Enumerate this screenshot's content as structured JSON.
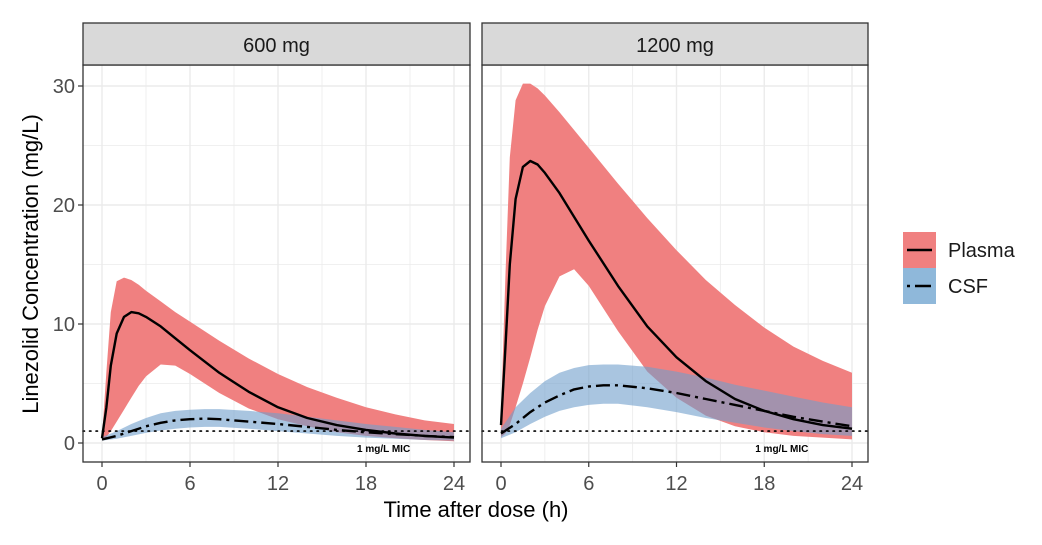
{
  "chart_data": {
    "type": "area",
    "title": "",
    "xlabel": "Time after dose (h)",
    "ylabel": "Linezolid Concentration (mg/L)",
    "xlim": [
      0,
      24
    ],
    "ylim": [
      -1.5,
      32
    ],
    "x_ticks": [
      0,
      6,
      12,
      18,
      24
    ],
    "y_ticks": [
      0,
      10,
      20,
      30
    ],
    "grid": true,
    "legend": {
      "position": "right",
      "entries": [
        {
          "name": "Plasma",
          "line": "solid",
          "fill": "#F08080"
        },
        {
          "name": "CSF",
          "line": "dashdot",
          "fill": "#8FB8DA"
        }
      ]
    },
    "reference_line": {
      "y": 1,
      "style": "dotted",
      "label": "1 mg/L MIC"
    },
    "panels": [
      {
        "label": "600 mg",
        "series": [
          {
            "name": "Plasma",
            "x": [
              0,
              0.3,
              0.6,
              1,
              1.5,
              2,
              2.5,
              3,
              4,
              5,
              6,
              8,
              10,
              12,
              14,
              16,
              18,
              20,
              22,
              24
            ],
            "median": [
              0.4,
              3.0,
              6.5,
              9.2,
              10.6,
              11.0,
              10.9,
              10.6,
              9.8,
              8.8,
              7.8,
              5.9,
              4.3,
              3.0,
              2.1,
              1.5,
              1.1,
              0.8,
              0.6,
              0.45
            ],
            "lower": [
              0.3,
              0.5,
              1.0,
              1.8,
              2.8,
              3.8,
              4.8,
              5.6,
              6.6,
              6.5,
              5.8,
              4.2,
              2.9,
              2.0,
              1.4,
              0.9,
              0.6,
              0.4,
              0.25,
              0.15
            ],
            "upper": [
              0.5,
              6.0,
              11.0,
              13.6,
              13.9,
              13.7,
              13.3,
              12.8,
              11.9,
              11.0,
              10.2,
              8.6,
              7.1,
              5.8,
              4.7,
              3.8,
              3.0,
              2.4,
              1.9,
              1.6
            ]
          },
          {
            "name": "CSF",
            "x": [
              0,
              1,
              2,
              3,
              4,
              5,
              6,
              7,
              8,
              10,
              12,
              14,
              16,
              18,
              20,
              22,
              24
            ],
            "median": [
              0.3,
              0.6,
              1.0,
              1.4,
              1.7,
              1.9,
              2.0,
              2.05,
              2.0,
              1.8,
              1.6,
              1.35,
              1.1,
              0.9,
              0.75,
              0.6,
              0.5
            ],
            "lower": [
              0.2,
              0.35,
              0.6,
              0.85,
              1.05,
              1.2,
              1.3,
              1.35,
              1.35,
              1.2,
              1.0,
              0.8,
              0.6,
              0.45,
              0.35,
              0.25,
              0.2
            ],
            "upper": [
              0.5,
              1.0,
              1.6,
              2.1,
              2.5,
              2.7,
              2.8,
              2.85,
              2.85,
              2.7,
              2.5,
              2.2,
              1.9,
              1.6,
              1.35,
              1.1,
              0.9
            ]
          }
        ]
      },
      {
        "label": "1200 mg",
        "series": [
          {
            "name": "Plasma",
            "x": [
              0,
              0.3,
              0.6,
              1,
              1.5,
              2,
              2.5,
              3,
              4,
              5,
              6,
              8,
              10,
              12,
              14,
              16,
              18,
              20,
              22,
              24
            ],
            "median": [
              1.5,
              8.0,
              15.0,
              20.5,
              23.2,
              23.7,
              23.4,
              22.7,
              21.0,
              19.0,
              17.0,
              13.2,
              9.8,
              7.2,
              5.2,
              3.7,
              2.7,
              2.0,
              1.5,
              1.2
            ],
            "lower": [
              0.5,
              0.8,
              1.5,
              3.0,
              5.0,
              7.2,
              9.5,
              11.5,
              14.0,
              14.6,
              13.2,
              9.4,
              6.0,
              3.8,
              2.3,
              1.4,
              0.9,
              0.6,
              0.45,
              0.3
            ],
            "upper": [
              2.5,
              14.0,
              24.0,
              28.8,
              30.2,
              30.2,
              29.8,
              29.2,
              27.8,
              26.3,
              24.8,
              21.8,
              18.9,
              16.2,
              13.7,
              11.6,
              9.7,
              8.1,
              6.9,
              5.9
            ]
          },
          {
            "name": "CSF",
            "x": [
              0,
              1,
              2,
              3,
              4,
              5,
              6,
              7,
              8,
              10,
              12,
              14,
              16,
              18,
              20,
              22,
              24
            ],
            "median": [
              0.8,
              1.6,
              2.6,
              3.4,
              4.0,
              4.5,
              4.75,
              4.85,
              4.85,
              4.6,
              4.2,
              3.7,
              3.2,
              2.7,
              2.2,
              1.8,
              1.4
            ],
            "lower": [
              0.4,
              0.9,
              1.6,
              2.2,
              2.7,
              3.0,
              3.2,
              3.3,
              3.3,
              3.0,
              2.6,
              2.1,
              1.7,
              1.3,
              1.0,
              0.75,
              0.6
            ],
            "upper": [
              1.2,
              3.0,
              4.2,
              5.2,
              5.9,
              6.3,
              6.55,
              6.6,
              6.6,
              6.4,
              6.0,
              5.5,
              4.9,
              4.4,
              3.9,
              3.4,
              3.0
            ]
          }
        ]
      }
    ]
  },
  "colors": {
    "plasma_fill": "#F08080",
    "csf_fill": "#8FB8DA",
    "strip_bg": "#D9D9D9",
    "panel_border": "#333333",
    "grid": "#EBEBEB",
    "tick_label": "#4D4D4D",
    "line": "#000000"
  }
}
